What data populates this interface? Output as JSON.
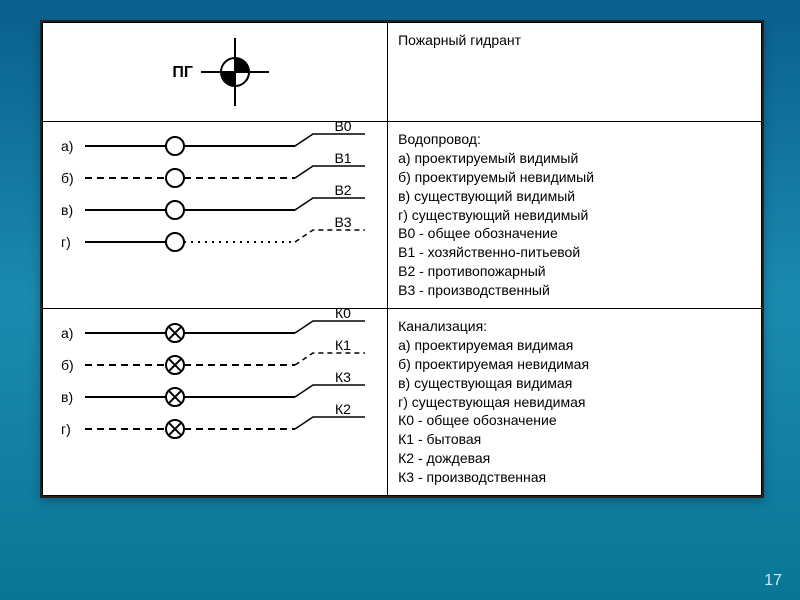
{
  "page_number": "17",
  "colors": {
    "bg_top": "#0a5f8e",
    "bg_mid": "#1a8bb0",
    "bg_bot": "#0a7696",
    "card_bg": "#ffffff",
    "border": "#000000",
    "stroke": "#000000",
    "text": "#000000"
  },
  "typography": {
    "body_fontsize": 14,
    "lineheight": 1.35,
    "family": "Arial"
  },
  "table": {
    "col_widths_pct": [
      48,
      52
    ],
    "rows": [
      {
        "symbol": {
          "type": "hydrant",
          "label": "ПГ",
          "stroke": "#000000",
          "label_fontweight": "bold",
          "circle_r": 14,
          "stem_len": 20,
          "line_width": 2
        },
        "desc_lines": [
          "Пожарный гидрант"
        ]
      },
      {
        "symbol": {
          "type": "pipes",
          "stroke": "#000000",
          "circle_r": 9,
          "line_width": 2,
          "left_dash": [
            7,
            5
          ],
          "right_dot": [
            2,
            5
          ],
          "items": [
            {
              "letter": "а)",
              "left_dash": false,
              "tag": "В0",
              "hook": true,
              "hook_dash": false
            },
            {
              "letter": "б)",
              "left_dash": true,
              "tag": "В1",
              "hook": true,
              "hook_dash": false
            },
            {
              "letter": "в)",
              "left_dash": false,
              "tag": "В2",
              "hook": true,
              "hook_dash": false
            },
            {
              "letter": "г)",
              "left_dash": false,
              "right_dot": true,
              "tag": "В3",
              "hook": true,
              "hook_dash": true
            }
          ]
        },
        "desc_lines": [
          "Водопровод:",
          "а) проектируемый видимый",
          "б) проектируемый невидимый",
          "в) существующий видимый",
          "г) существующий невидимый",
          "В0 - общее обозначение",
          "В1 - хозяйственно-питьевой",
          "В2 - противопожарный",
          "В3 - производственный"
        ]
      },
      {
        "symbol": {
          "type": "pipes",
          "stroke": "#000000",
          "circle_r": 9,
          "marker": "x",
          "line_width": 2,
          "left_dash": [
            7,
            5
          ],
          "items": [
            {
              "letter": "а)",
              "left_dash": false,
              "tag": "К0",
              "hook": true,
              "hook_dash": false
            },
            {
              "letter": "б)",
              "left_dash": true,
              "tag": "К1",
              "hook": true,
              "hook_dash": true
            },
            {
              "letter": "в)",
              "left_dash": false,
              "tag": "К3",
              "hook": true,
              "hook_dash": false
            },
            {
              "letter": "г)",
              "left_dash": true,
              "tag": "К2",
              "hook": true,
              "hook_dash": false
            }
          ]
        },
        "desc_lines": [
          "Канализация:",
          "а) проектируемая видимая",
          "б) проектируемая невидимая",
          "в) существующая видимая",
          "г) существующая невидимая",
          "К0 - общее обозначение",
          "К1 - бытовая",
          "К2 - дождевая",
          "К3 - производственная"
        ]
      }
    ]
  }
}
